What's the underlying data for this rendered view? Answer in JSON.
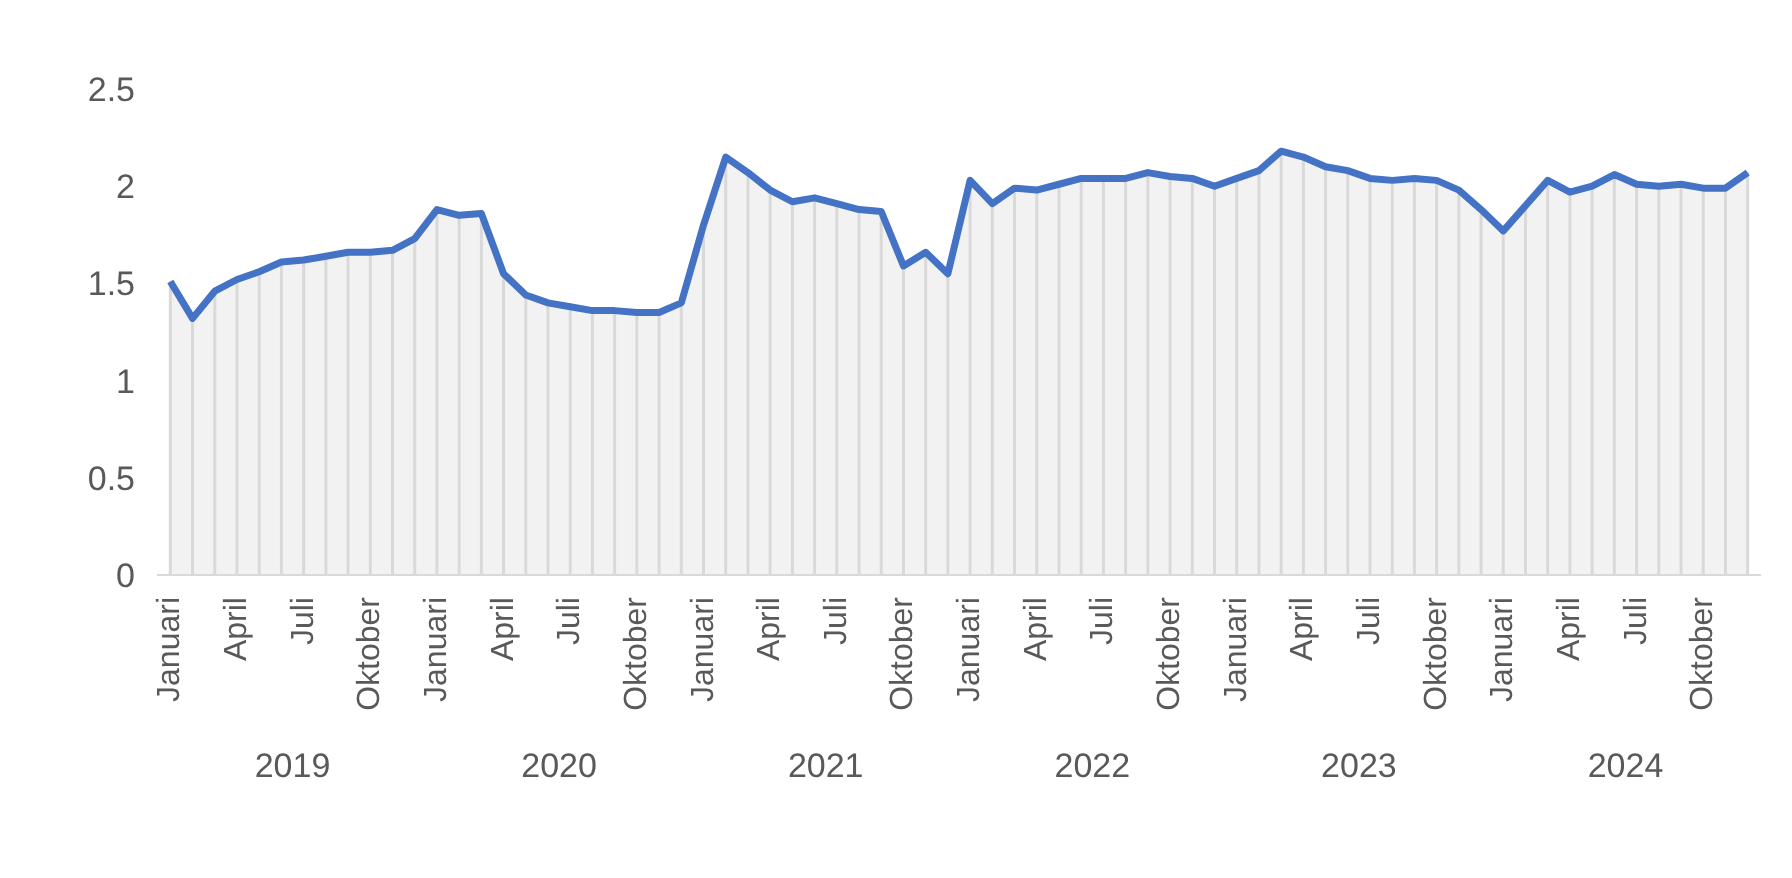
{
  "chart_data": {
    "type": "area",
    "categories": [
      "Januari",
      null,
      null,
      "April",
      null,
      null,
      "Juli",
      null,
      null,
      "Oktober",
      null,
      null,
      "Januari",
      null,
      null,
      "April",
      null,
      null,
      "Juli",
      null,
      null,
      "Oktober",
      null,
      null,
      "Januari",
      null,
      null,
      "April",
      null,
      null,
      "Juli",
      null,
      null,
      "Oktober",
      null,
      null,
      "Januari",
      null,
      null,
      "April",
      null,
      null,
      "Juli",
      null,
      null,
      "Oktober",
      null,
      null,
      "Januari",
      null,
      null,
      "April",
      null,
      null,
      "Juli",
      null,
      null,
      "Oktober",
      null,
      null,
      "Januari",
      null,
      null,
      "April",
      null,
      null,
      "Juli",
      null,
      null,
      "Oktober",
      null,
      null
    ],
    "series": [
      {
        "color": "#4472c4",
        "values": [
          1.51,
          1.32,
          1.46,
          1.52,
          1.56,
          1.61,
          1.62,
          1.64,
          1.66,
          1.66,
          1.67,
          1.73,
          1.88,
          1.85,
          1.86,
          1.55,
          1.44,
          1.4,
          1.38,
          1.36,
          1.36,
          1.35,
          1.35,
          1.4,
          1.8,
          2.15,
          2.07,
          1.98,
          1.92,
          1.94,
          1.91,
          1.88,
          1.87,
          1.59,
          1.66,
          1.55,
          2.03,
          1.91,
          1.99,
          1.98,
          2.01,
          2.04,
          2.04,
          2.04,
          2.07,
          2.05,
          2.04,
          2.0,
          2.04,
          2.08,
          2.18,
          2.15,
          2.1,
          2.08,
          2.04,
          2.03,
          2.04,
          2.03,
          1.98,
          1.88,
          1.77,
          1.9,
          2.03,
          1.97,
          2.0,
          2.06,
          2.01,
          2.0,
          2.01,
          1.99,
          1.99,
          2.07
        ]
      }
    ],
    "grid": "x",
    "ylim": [
      0,
      2.5
    ],
    "yticks": [
      0,
      0.5,
      1,
      1.5,
      2,
      2.5
    ],
    "annotations": [
      "2019",
      "2020",
      "2021",
      "2022",
      "2023",
      "2024"
    ]
  }
}
